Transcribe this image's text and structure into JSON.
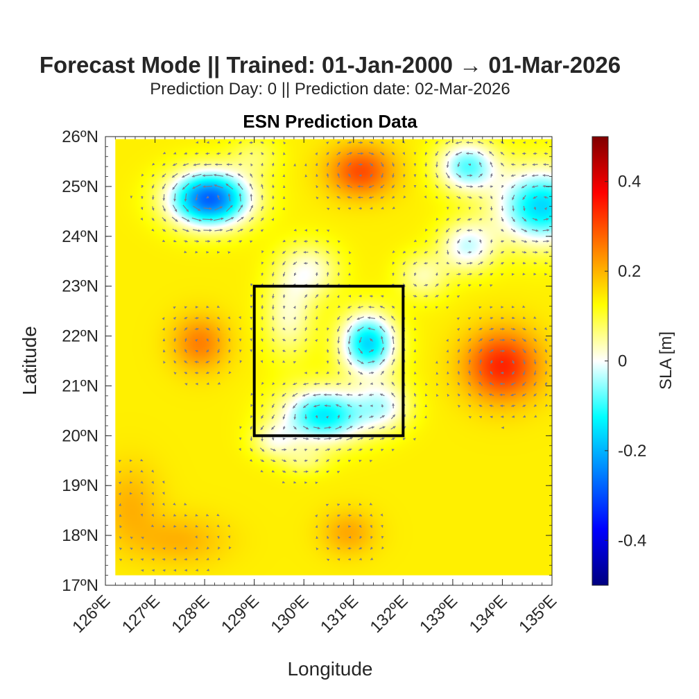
{
  "figure": {
    "title": "Forecast Mode || Trained: 01-Jan-2000 → 01-Mar-2026",
    "subtitle": "Prediction Day: 0 || Prediction date: 02-Mar-2026"
  },
  "chart_data": {
    "type": "heatmap",
    "title": "ESN Prediction Data",
    "xlabel": "Longitude",
    "ylabel": "Latitude",
    "xlim": [
      126,
      135
    ],
    "ylim": [
      17,
      26
    ],
    "data_extent": {
      "lon": [
        126.2,
        135
      ],
      "lat": [
        17.2,
        25.95
      ]
    },
    "x_ticks": [
      126,
      127,
      128,
      129,
      130,
      131,
      132,
      133,
      134,
      135
    ],
    "x_tick_labels": [
      "126ºE",
      "127ºE",
      "128ºE",
      "129ºE",
      "130ºE",
      "131ºE",
      "132ºE",
      "133ºE",
      "134ºE",
      "135ºE"
    ],
    "y_ticks": [
      17,
      18,
      19,
      20,
      21,
      22,
      23,
      24,
      25,
      26
    ],
    "y_tick_labels": [
      "17ºN",
      "18ºN",
      "19ºN",
      "20ºN",
      "21ºN",
      "22ºN",
      "23ºN",
      "24ºN",
      "25ºN",
      "26ºN"
    ],
    "colorbar": {
      "label": "SLA [m]",
      "limits": [
        -0.5,
        0.5
      ],
      "ticks": [
        -0.4,
        -0.2,
        0,
        0.2,
        0.4
      ],
      "tick_labels": [
        "-0.4",
        "-0.2",
        "0",
        "0.2",
        "0.4"
      ],
      "colormap": "jet-white-center",
      "colors": [
        "#00007f",
        "#0000ff",
        "#0080ff",
        "#00ffff",
        "#ffffff",
        "#ffff00",
        "#ff8000",
        "#ff0000",
        "#7f0000"
      ]
    },
    "field_background": 0.14,
    "field_features": [
      {
        "lon": 128.1,
        "lat": 24.75,
        "amp": -0.42,
        "rlon": 0.8,
        "rlat": 0.55
      },
      {
        "lon": 129.0,
        "lat": 25.6,
        "amp": -0.06,
        "rlon": 0.5,
        "rlat": 0.4
      },
      {
        "lon": 131.15,
        "lat": 25.3,
        "amp": 0.16,
        "rlon": 0.65,
        "rlat": 0.5
      },
      {
        "lon": 134.8,
        "lat": 24.6,
        "amp": -0.3,
        "rlon": 0.9,
        "rlat": 0.75
      },
      {
        "lon": 133.3,
        "lat": 25.4,
        "amp": -0.22,
        "rlon": 0.6,
        "rlat": 0.5
      },
      {
        "lon": 133.3,
        "lat": 23.8,
        "amp": -0.16,
        "rlon": 0.55,
        "rlat": 0.5
      },
      {
        "lon": 132.4,
        "lat": 23.2,
        "amp": -0.1,
        "rlon": 0.5,
        "rlat": 0.45
      },
      {
        "lon": 130.1,
        "lat": 23.3,
        "amp": -0.12,
        "rlon": 0.6,
        "rlat": 0.55
      },
      {
        "lon": 129.7,
        "lat": 22.4,
        "amp": -0.11,
        "rlon": 0.5,
        "rlat": 0.8
      },
      {
        "lon": 131.3,
        "lat": 21.85,
        "amp": -0.3,
        "rlon": 0.55,
        "rlat": 0.6
      },
      {
        "lon": 130.4,
        "lat": 20.4,
        "amp": -0.28,
        "rlon": 0.85,
        "rlat": 0.55
      },
      {
        "lon": 131.6,
        "lat": 20.6,
        "amp": -0.14,
        "rlon": 0.55,
        "rlat": 0.5
      },
      {
        "lon": 129.4,
        "lat": 19.9,
        "amp": -0.1,
        "rlon": 0.45,
        "rlat": 0.35
      },
      {
        "lon": 130.0,
        "lat": 19.5,
        "amp": -0.06,
        "rlon": 0.5,
        "rlat": 0.3
      },
      {
        "lon": 127.9,
        "lat": 21.85,
        "amp": 0.11,
        "rlon": 0.55,
        "rlat": 0.55
      },
      {
        "lon": 134.0,
        "lat": 21.4,
        "amp": 0.2,
        "rlon": 0.75,
        "rlat": 0.7
      },
      {
        "lon": 126.5,
        "lat": 18.6,
        "amp": 0.06,
        "rlon": 0.6,
        "rlat": 0.8
      },
      {
        "lon": 127.5,
        "lat": 17.9,
        "amp": 0.06,
        "rlon": 0.9,
        "rlat": 0.5
      },
      {
        "lon": 130.9,
        "lat": 18.05,
        "amp": 0.07,
        "rlon": 0.55,
        "rlat": 0.45
      }
    ],
    "box": {
      "lon": [
        129,
        132
      ],
      "lat": [
        20,
        23
      ]
    },
    "quiver": {
      "spacing_deg": 0.22,
      "color": "#7a7a8a"
    }
  }
}
